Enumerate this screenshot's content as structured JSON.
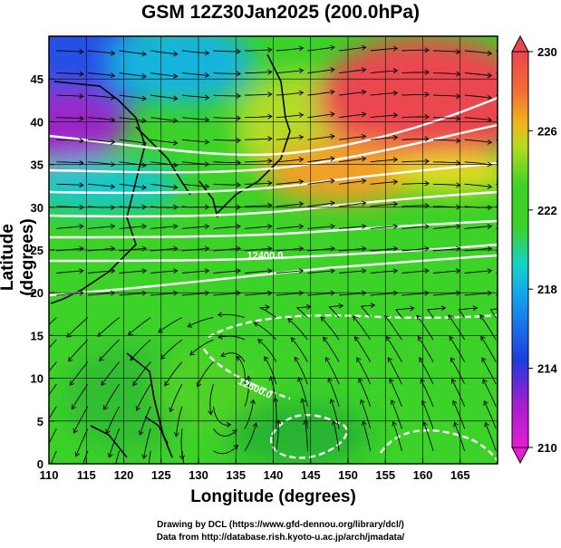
{
  "chart_data": {
    "type": "heatmap",
    "title": "GSM 12Z30Jan2025 (200.0hPa)",
    "xlabel": "Longitude (degrees)",
    "ylabel": "Latitude  (degrees)",
    "xlim": [
      110,
      170
    ],
    "ylim": [
      0,
      50
    ],
    "x_ticks": [
      110,
      115,
      120,
      125,
      130,
      135,
      140,
      145,
      150,
      155,
      160,
      165
    ],
    "y_ticks": [
      0,
      5,
      10,
      15,
      20,
      25,
      30,
      35,
      40,
      45
    ],
    "colorbar": {
      "min": 210,
      "max": 230,
      "tick_values": [
        210,
        214,
        218,
        222,
        226,
        230
      ],
      "tick_labels": [
        "210",
        "214",
        "218",
        "222",
        "226",
        "230"
      ]
    },
    "contour_labels": [
      {
        "text": "12400.0",
        "lon": 136.5,
        "lat": 24.0
      },
      {
        "text": "12500.0",
        "lon": 135.5,
        "lat": 10.0
      }
    ],
    "colors": {
      "magenta": "#e61ed2",
      "blue": "#1e3cdc",
      "cyan": "#14c8e6",
      "green": "#3cd228",
      "yellow": "#e6dc1e",
      "orange": "#f08c28",
      "red": "#eb4650"
    }
  },
  "credits": {
    "line1": "Drawing by DCL (https://www.gfd-dennou.org/library/dcl/)",
    "line2": "Data from http://database.rish.kyoto-u.ac.jp/arch/jmadata/"
  }
}
